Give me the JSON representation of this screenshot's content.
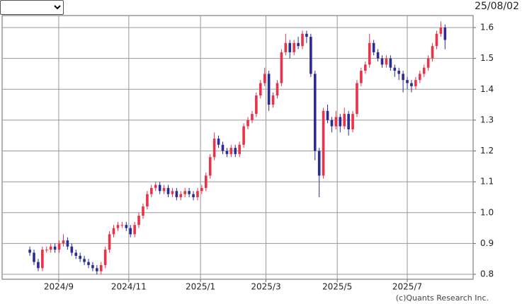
{
  "chart_data": {
    "type": "candlestick",
    "date": "25/08/02",
    "credit": "(c)Quants Research Inc.",
    "up_color": "#e8334a",
    "down_color": "#2b2b96",
    "grid": true,
    "xlim": [
      -6.6,
      105.7
    ],
    "xticks": [
      {
        "value": 6.9,
        "label": "2024/9"
      },
      {
        "value": 23.6,
        "label": "2024/11"
      },
      {
        "value": 40.7,
        "label": "2025/1"
      },
      {
        "value": 56.3,
        "label": "2025/3"
      },
      {
        "value": 73.3,
        "label": "2025/5"
      },
      {
        "value": 90.0,
        "label": "2025/7"
      }
    ],
    "ylim": [
      0.784,
      1.639
    ],
    "yticks": [
      0.8,
      0.9,
      {
        "value": 1,
        "label": "1.0"
      },
      1.1,
      1.2,
      1.3,
      1.4,
      1.5,
      1.6
    ],
    "open": [
      0.88,
      0.87,
      0.84,
      0.82,
      0.88,
      0.88,
      0.89,
      0.88,
      0.9,
      0.91,
      0.89,
      0.87,
      0.86,
      0.85,
      0.84,
      0.83,
      0.82,
      0.81,
      0.83,
      0.88,
      0.93,
      0.95,
      0.96,
      0.96,
      0.95,
      0.93,
      0.96,
      0.99,
      1.02,
      1.06,
      1.08,
      1.09,
      1.07,
      1.08,
      1.06,
      1.07,
      1.05,
      1.06,
      1.07,
      1.06,
      1.05,
      1.07,
      1.08,
      1.12,
      1.18,
      1.24,
      1.22,
      1.2,
      1.19,
      1.21,
      1.19,
      1.22,
      1.28,
      1.3,
      1.32,
      1.38,
      1.42,
      1.45,
      1.35,
      1.38,
      1.42,
      1.52,
      1.55,
      1.52,
      1.55,
      1.54,
      1.58,
      1.57,
      1.45,
      1.2,
      1.12,
      1.33,
      1.3,
      1.28,
      1.31,
      1.28,
      1.32,
      1.27,
      1.32,
      1.42,
      1.46,
      1.48,
      1.55,
      1.52,
      1.5,
      1.48,
      1.5,
      1.47,
      1.46,
      1.45,
      1.43,
      1.42,
      1.41,
      1.43,
      1.45,
      1.47,
      1.5,
      1.54,
      1.58,
      1.6
    ],
    "high": [
      0.89,
      0.88,
      0.85,
      0.89,
      0.89,
      0.9,
      0.9,
      0.91,
      0.93,
      0.92,
      0.9,
      0.88,
      0.87,
      0.86,
      0.85,
      0.84,
      0.83,
      0.84,
      0.89,
      0.94,
      0.96,
      0.97,
      0.97,
      0.97,
      0.96,
      0.97,
      1.0,
      1.03,
      1.07,
      1.09,
      1.1,
      1.1,
      1.09,
      1.09,
      1.08,
      1.08,
      1.07,
      1.08,
      1.08,
      1.07,
      1.08,
      1.09,
      1.13,
      1.19,
      1.26,
      1.25,
      1.23,
      1.21,
      1.22,
      1.22,
      1.23,
      1.29,
      1.31,
      1.33,
      1.39,
      1.43,
      1.47,
      1.46,
      1.39,
      1.43,
      1.53,
      1.58,
      1.56,
      1.56,
      1.57,
      1.59,
      1.59,
      1.58,
      1.46,
      1.21,
      1.34,
      1.35,
      1.31,
      1.33,
      1.32,
      1.34,
      1.33,
      1.33,
      1.43,
      1.47,
      1.49,
      1.58,
      1.56,
      1.53,
      1.51,
      1.51,
      1.51,
      1.48,
      1.47,
      1.46,
      1.44,
      1.43,
      1.44,
      1.46,
      1.48,
      1.51,
      1.55,
      1.59,
      1.62,
      1.61
    ],
    "low": [
      0.86,
      0.83,
      0.81,
      0.81,
      0.87,
      0.87,
      0.87,
      0.87,
      0.89,
      0.88,
      0.86,
      0.85,
      0.84,
      0.83,
      0.82,
      0.81,
      0.8,
      0.8,
      0.82,
      0.87,
      0.92,
      0.94,
      0.95,
      0.94,
      0.92,
      0.92,
      0.95,
      0.98,
      1.01,
      1.05,
      1.07,
      1.06,
      1.06,
      1.05,
      1.05,
      1.04,
      1.04,
      1.05,
      1.05,
      1.04,
      1.04,
      1.06,
      1.07,
      1.11,
      1.17,
      1.21,
      1.19,
      1.18,
      1.18,
      1.18,
      1.18,
      1.21,
      1.27,
      1.29,
      1.31,
      1.37,
      1.41,
      1.33,
      1.34,
      1.37,
      1.41,
      1.51,
      1.5,
      1.51,
      1.53,
      1.53,
      1.55,
      1.44,
      1.17,
      1.05,
      1.11,
      1.29,
      1.26,
      1.27,
      1.26,
      1.27,
      1.25,
      1.26,
      1.31,
      1.41,
      1.45,
      1.47,
      1.51,
      1.49,
      1.47,
      1.47,
      1.46,
      1.44,
      1.43,
      1.39,
      1.4,
      1.39,
      1.4,
      1.42,
      1.44,
      1.46,
      1.49,
      1.53,
      1.57,
      1.53
    ],
    "close": [
      0.87,
      0.84,
      0.82,
      0.88,
      0.88,
      0.89,
      0.88,
      0.9,
      0.91,
      0.89,
      0.87,
      0.86,
      0.85,
      0.84,
      0.83,
      0.82,
      0.81,
      0.83,
      0.88,
      0.93,
      0.95,
      0.96,
      0.96,
      0.95,
      0.93,
      0.96,
      0.99,
      1.02,
      1.06,
      1.08,
      1.09,
      1.07,
      1.08,
      1.06,
      1.07,
      1.05,
      1.06,
      1.07,
      1.06,
      1.05,
      1.07,
      1.08,
      1.12,
      1.18,
      1.24,
      1.22,
      1.2,
      1.19,
      1.21,
      1.19,
      1.22,
      1.28,
      1.3,
      1.32,
      1.38,
      1.42,
      1.45,
      1.35,
      1.38,
      1.42,
      1.52,
      1.55,
      1.52,
      1.55,
      1.54,
      1.58,
      1.57,
      1.45,
      1.2,
      1.12,
      1.33,
      1.3,
      1.28,
      1.31,
      1.28,
      1.32,
      1.27,
      1.32,
      1.42,
      1.46,
      1.48,
      1.55,
      1.52,
      1.5,
      1.48,
      1.5,
      1.47,
      1.46,
      1.45,
      1.43,
      1.42,
      1.41,
      1.43,
      1.45,
      1.47,
      1.5,
      1.54,
      1.58,
      1.6,
      1.56
    ]
  }
}
